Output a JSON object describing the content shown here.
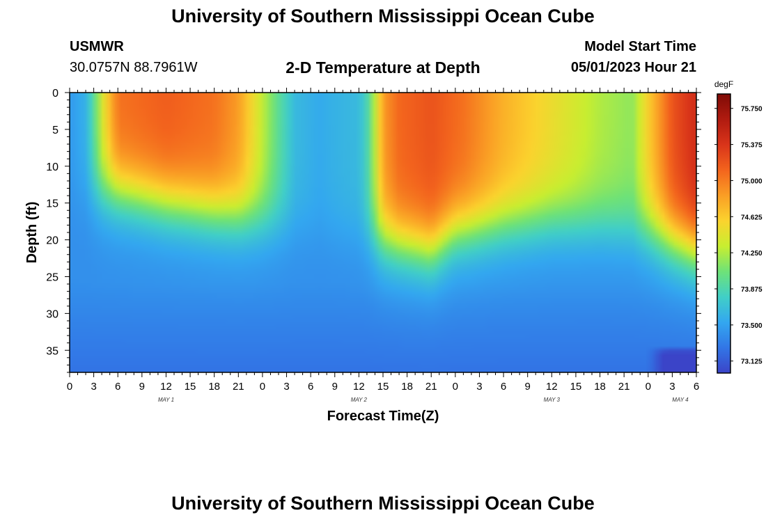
{
  "header": {
    "title": "University of Southern Mississippi Ocean Cube",
    "station": "USMWR",
    "coords": "30.0757N  88.7961W",
    "chart_title": "2-D Temperature at Depth",
    "model_label": "Model Start Time",
    "model_time": "05/01/2023 Hour 21"
  },
  "footer": {
    "title": "University of Southern Mississippi Ocean Cube"
  },
  "colors": {
    "colormap": [
      "#3b44c8",
      "#3276e6",
      "#33a7f0",
      "#41cfc7",
      "#6ee278",
      "#c8ee30",
      "#fbd32e",
      "#fa9e25",
      "#f3641d",
      "#d9341a",
      "#b01b10",
      "#7f0b06"
    ]
  },
  "chart_data": {
    "type": "heatmap",
    "title": "2-D Temperature at Depth",
    "xlabel": "Forecast Time(Z)",
    "ylabel": "Depth (ft)",
    "x_ticks": [
      "0",
      "3",
      "6",
      "9",
      "12",
      "15",
      "18",
      "21",
      "0",
      "3",
      "6",
      "9",
      "12",
      "15",
      "18",
      "21",
      "0",
      "3",
      "6",
      "9",
      "12",
      "15",
      "18",
      "21",
      "0",
      "3",
      "6"
    ],
    "x_range_hours": [
      0,
      78
    ],
    "date_labels": [
      {
        "label": "MAY 1",
        "hour": 12
      },
      {
        "label": "MAY 2",
        "hour": 36
      },
      {
        "label": "MAY 3",
        "hour": 60
      },
      {
        "label": "MAY 4",
        "hour": 76
      }
    ],
    "y_ticks": [
      "0",
      "5",
      "10",
      "15",
      "20",
      "25",
      "30",
      "35"
    ],
    "y_range_ft": [
      0,
      38
    ],
    "colorbar": {
      "unit": "degF",
      "range": [
        73.0,
        75.9
      ],
      "ticks": [
        "75.750",
        "75.375",
        "75.000",
        "74.625",
        "74.250",
        "73.875",
        "73.500",
        "73.125"
      ]
    },
    "surface_temperature_degF": [
      {
        "hour": 0,
        "value": 73.45
      },
      {
        "hour": 2,
        "value": 73.6
      },
      {
        "hour": 3,
        "value": 73.95
      },
      {
        "hour": 4,
        "value": 74.4
      },
      {
        "hour": 6,
        "value": 75.05
      },
      {
        "hour": 12,
        "value": 75.15
      },
      {
        "hour": 18,
        "value": 75.05
      },
      {
        "hour": 21,
        "value": 74.85
      },
      {
        "hour": 24,
        "value": 74.3
      },
      {
        "hour": 26,
        "value": 73.95
      },
      {
        "hour": 28,
        "value": 73.65
      },
      {
        "hour": 31,
        "value": 73.55
      },
      {
        "hour": 33,
        "value": 73.6
      },
      {
        "hour": 36,
        "value": 73.65
      },
      {
        "hour": 37,
        "value": 73.85
      },
      {
        "hour": 38,
        "value": 74.3
      },
      {
        "hour": 39,
        "value": 74.85
      },
      {
        "hour": 41,
        "value": 75.1
      },
      {
        "hour": 45,
        "value": 75.2
      },
      {
        "hour": 49,
        "value": 75.05
      },
      {
        "hour": 54,
        "value": 74.75
      },
      {
        "hour": 60,
        "value": 74.5
      },
      {
        "hour": 66,
        "value": 74.25
      },
      {
        "hour": 70,
        "value": 74.15
      },
      {
        "hour": 72,
        "value": 74.6
      },
      {
        "hour": 75,
        "value": 75.2
      },
      {
        "hour": 78,
        "value": 75.45
      }
    ],
    "thermocline_depth_ft": [
      {
        "hour": 0,
        "value": 14
      },
      {
        "hour": 6,
        "value": 13.5
      },
      {
        "hour": 12,
        "value": 15
      },
      {
        "hour": 24,
        "value": 17.5
      },
      {
        "hour": 36,
        "value": 19.5
      },
      {
        "hour": 45,
        "value": 21.5
      },
      {
        "hour": 48,
        "value": 19
      },
      {
        "hour": 54,
        "value": 18
      },
      {
        "hour": 60,
        "value": 17.5
      },
      {
        "hour": 66,
        "value": 18
      },
      {
        "hour": 72,
        "value": 19
      },
      {
        "hour": 78,
        "value": 21.5
      }
    ],
    "bottom_temperature_degF": 73.25,
    "deep_temperature_degF": 73.4,
    "bottom_cold_patch": {
      "hours": [
        72,
        78
      ],
      "depth_ft": [
        34.5,
        38
      ],
      "value_degF": 72.95
    }
  }
}
